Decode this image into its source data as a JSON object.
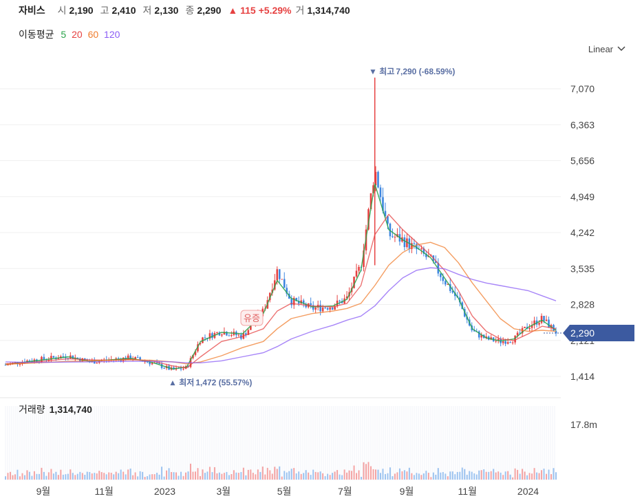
{
  "header": {
    "name": "자비스",
    "open_label": "시",
    "open": "2,190",
    "high_label": "고",
    "high": "2,410",
    "low_label": "저",
    "low": "2,130",
    "close_label": "종",
    "close": "2,290",
    "change": "▲ 115 +5.29%",
    "volume_label": "거",
    "volume": "1,314,740"
  },
  "ma_legend": {
    "title": "이동평균",
    "periods": [
      {
        "label": "5",
        "color": "#2aa34a"
      },
      {
        "label": "20",
        "color": "#e64141"
      },
      {
        "label": "60",
        "color": "#f07c2c"
      },
      {
        "label": "120",
        "color": "#8a5cf5"
      }
    ]
  },
  "scale_button": {
    "label": "Linear"
  },
  "chart_data": {
    "type": "candlestick",
    "price_axis": {
      "ticks": [
        "7,070",
        "6,363",
        "5,656",
        "4,949",
        "4,242",
        "3,535",
        "2,828",
        "2,121",
        "1,414"
      ],
      "tick_values": [
        7070,
        6363,
        5656,
        4949,
        4242,
        3535,
        2828,
        2121,
        1414
      ]
    },
    "x_axis": {
      "ticks": [
        "9월",
        "11월",
        "2023",
        "3월",
        "5월",
        "7월",
        "9월",
        "11월",
        "2024"
      ]
    },
    "current_price": {
      "label": "2,290",
      "value": 2290,
      "color": "#3c5aa0"
    },
    "high_marker": {
      "prefix": "최고",
      "text": "7,290 (-68.59%)",
      "value": 7290
    },
    "low_marker": {
      "prefix": "최저",
      "text": "1,472 (55.57%)",
      "value": 1472
    },
    "event_badge": "유증",
    "close_series": [
      {
        "x": "2022-07-25",
        "y": 1640
      },
      {
        "x": "2022-08-15",
        "y": 1720
      },
      {
        "x": "2022-09-05",
        "y": 1760
      },
      {
        "x": "2022-09-26",
        "y": 1820
      },
      {
        "x": "2022-10-17",
        "y": 1700
      },
      {
        "x": "2022-11-07",
        "y": 1740
      },
      {
        "x": "2022-11-28",
        "y": 1780
      },
      {
        "x": "2022-12-19",
        "y": 1680
      },
      {
        "x": "2023-01-09",
        "y": 1540
      },
      {
        "x": "2023-01-23",
        "y": 1580
      },
      {
        "x": "2023-02-06",
        "y": 2150
      },
      {
        "x": "2023-02-27",
        "y": 2300
      },
      {
        "x": "2023-03-20",
        "y": 2200
      },
      {
        "x": "2023-04-10",
        "y": 2700
      },
      {
        "x": "2023-04-24",
        "y": 3500
      },
      {
        "x": "2023-05-08",
        "y": 2900
      },
      {
        "x": "2023-05-29",
        "y": 2750
      },
      {
        "x": "2023-06-19",
        "y": 2800
      },
      {
        "x": "2023-07-03",
        "y": 2950
      },
      {
        "x": "2023-07-17",
        "y": 3600
      },
      {
        "x": "2023-07-31",
        "y": 5500
      },
      {
        "x": "2023-08-14",
        "y": 4200
      },
      {
        "x": "2023-08-28",
        "y": 4100
      },
      {
        "x": "2023-09-11",
        "y": 3900
      },
      {
        "x": "2023-09-25",
        "y": 3700
      },
      {
        "x": "2023-10-09",
        "y": 3300
      },
      {
        "x": "2023-10-23",
        "y": 2900
      },
      {
        "x": "2023-11-06",
        "y": 2300
      },
      {
        "x": "2023-11-20",
        "y": 2150
      },
      {
        "x": "2023-12-04",
        "y": 2100
      },
      {
        "x": "2023-12-18",
        "y": 2150
      },
      {
        "x": "2024-01-01",
        "y": 2400
      },
      {
        "x": "2024-01-15",
        "y": 2550
      },
      {
        "x": "2024-01-29",
        "y": 2290
      }
    ],
    "ma_series": [
      {
        "name": "5",
        "values": [
          1650,
          1700,
          1750,
          1800,
          1710,
          1740,
          1770,
          1690,
          1560,
          1600,
          2100,
          2280,
          2250,
          2650,
          3300,
          2950,
          2780,
          2800,
          2930,
          3500,
          5200,
          4300,
          4100,
          3950,
          3750,
          3350,
          2950,
          2350,
          2170,
          2110,
          2150,
          2380,
          2520,
          2320
        ]
      },
      {
        "name": "20",
        "values": [
          1660,
          1680,
          1720,
          1760,
          1740,
          1730,
          1750,
          1720,
          1620,
          1580,
          1800,
          2100,
          2200,
          2350,
          2700,
          2850,
          2800,
          2780,
          2850,
          3200,
          4200,
          4600,
          4300,
          4050,
          3800,
          3500,
          3100,
          2600,
          2300,
          2150,
          2120,
          2250,
          2400,
          2350
        ]
      },
      {
        "name": "60",
        "values": [
          1650,
          1670,
          1690,
          1710,
          1720,
          1730,
          1740,
          1730,
          1700,
          1660,
          1700,
          1820,
          1980,
          2100,
          2350,
          2550,
          2650,
          2700,
          2750,
          2850,
          3200,
          3600,
          3850,
          4000,
          4050,
          3950,
          3650,
          3250,
          2900,
          2550,
          2350,
          2300,
          2320,
          2300
        ]
      },
      {
        "name": "120",
        "values": [
          1700,
          1690,
          1690,
          1695,
          1700,
          1705,
          1710,
          1712,
          1700,
          1680,
          1680,
          1720,
          1800,
          1880,
          2000,
          2150,
          2300,
          2420,
          2520,
          2600,
          2800,
          3100,
          3350,
          3500,
          3550,
          3530,
          3420,
          3320,
          3250,
          3200,
          3150,
          3100,
          3000,
          2900
        ]
      }
    ],
    "volume_panel": {
      "label": "거래량",
      "value": "1,314,740",
      "axis_tick": "17.8m",
      "axis_tick_value": 17800000
    }
  }
}
